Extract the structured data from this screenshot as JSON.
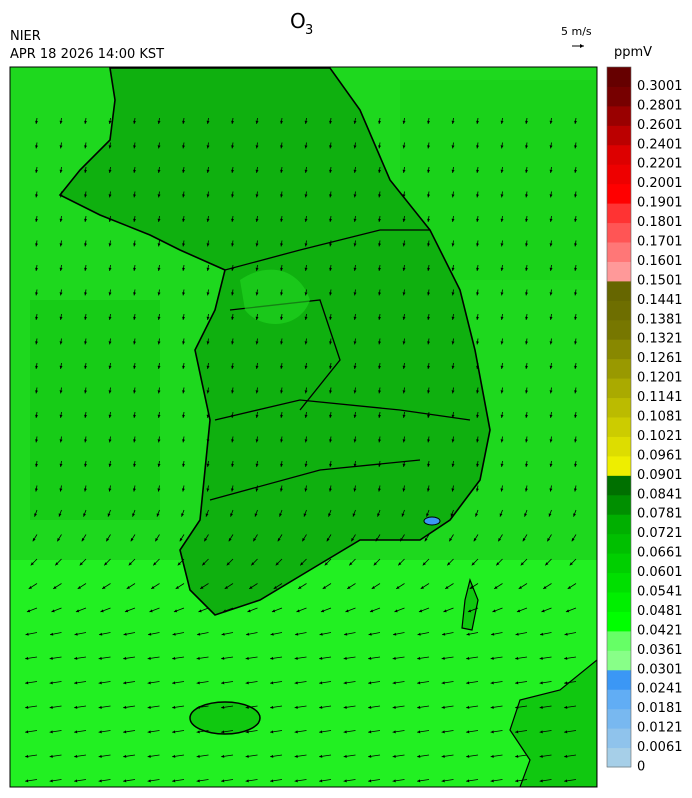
{
  "header": {
    "title": "O",
    "title_subscript": "3",
    "agency": "NIER",
    "timestamp": "APR 18 2026 14:00 KST",
    "wind_scale": "5 m/s"
  },
  "colorbar": {
    "unit": "ppmV",
    "ticks": [
      0,
      0.0061,
      0.0121,
      0.0181,
      0.0241,
      0.0301,
      0.0361,
      0.0421,
      0.0481,
      0.0541,
      0.0601,
      0.0661,
      0.0721,
      0.0781,
      0.0841,
      0.0901,
      0.0961,
      0.1021,
      0.1081,
      0.1141,
      0.1201,
      0.1261,
      0.1321,
      0.1381,
      0.1441,
      0.1501,
      0.1601,
      0.1701,
      0.1801,
      0.1901,
      0.2001,
      0.2201,
      0.2401,
      0.2601,
      0.2801,
      0.3001
    ],
    "colors": [
      "#a6cfe8",
      "#8fc3ec",
      "#78b8f0",
      "#61adf4",
      "#3b97f5",
      "#88ff88",
      "#66ff66",
      "#00ff00",
      "#00ef00",
      "#00df00",
      "#00cf00",
      "#00bf00",
      "#00af00",
      "#008f00",
      "#007000",
      "#eeee00",
      "#dddd00",
      "#cccc00",
      "#bbbb00",
      "#aaaa00",
      "#999900",
      "#888800",
      "#777700",
      "#6e6e00",
      "#666600",
      "#ff9999",
      "#ff7777",
      "#ff5555",
      "#ff3333",
      "#ff0000",
      "#ee0000",
      "#dd0000",
      "#bb0000",
      "#990000",
      "#770000",
      "#660000"
    ]
  }
}
